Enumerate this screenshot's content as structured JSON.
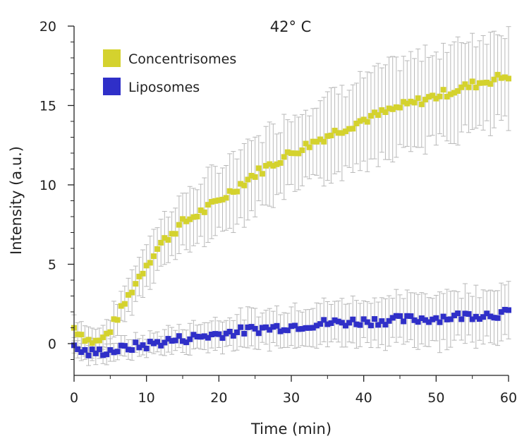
{
  "chart_data": {
    "type": "scatter",
    "title": "42° C",
    "xlabel": "Time (min)",
    "ylabel": "Intensity (a.u.)",
    "xlim": [
      0,
      60
    ],
    "ylim": [
      -2,
      20
    ],
    "x_ticks": [
      0,
      10,
      20,
      30,
      40,
      50,
      60
    ],
    "x_tick_labels": [
      "0",
      "10",
      "20",
      "30",
      "40",
      "50",
      "60"
    ],
    "y_ticks": [
      0,
      5,
      10,
      15,
      20
    ],
    "y_tick_labels": [
      "0",
      "5",
      "10",
      "15",
      "20"
    ],
    "x_step": 0.5,
    "grid": false,
    "legend_position": "top-left",
    "series": [
      {
        "name": "Concentrisomes",
        "color": "#d4d22e",
        "anchors_x": [
          0,
          1,
          2,
          3,
          4,
          5,
          6,
          8,
          10,
          12,
          15,
          18,
          20,
          25,
          30,
          35,
          40,
          45,
          50,
          55,
          60
        ],
        "anchors_y": [
          1.0,
          0.6,
          0.2,
          0.1,
          0.3,
          0.9,
          1.7,
          3.4,
          5.0,
          6.3,
          7.6,
          8.4,
          9.0,
          10.7,
          12.0,
          13.1,
          14.1,
          14.9,
          15.6,
          16.3,
          16.9
        ],
        "err_anchors_x": [
          0,
          5,
          10,
          20,
          30,
          40,
          50,
          60
        ],
        "err_anchors": [
          0.8,
          0.9,
          1.4,
          2.1,
          2.4,
          2.7,
          2.9,
          3.0
        ]
      },
      {
        "name": "Liposomes",
        "color": "#2f2fc8",
        "anchors_x": [
          0,
          2,
          4,
          6,
          8,
          10,
          12,
          15,
          20,
          25,
          30,
          35,
          40,
          45,
          50,
          55,
          60
        ],
        "anchors_y": [
          -0.3,
          -0.6,
          -0.5,
          -0.4,
          -0.2,
          -0.1,
          0.1,
          0.3,
          0.6,
          0.9,
          1.1,
          1.3,
          1.4,
          1.5,
          1.6,
          1.8,
          1.9
        ],
        "err_anchors_x": [
          0,
          10,
          20,
          30,
          40,
          50,
          60
        ],
        "err_anchors": [
          0.6,
          0.6,
          1.0,
          1.2,
          1.4,
          1.6,
          1.7
        ]
      }
    ]
  }
}
